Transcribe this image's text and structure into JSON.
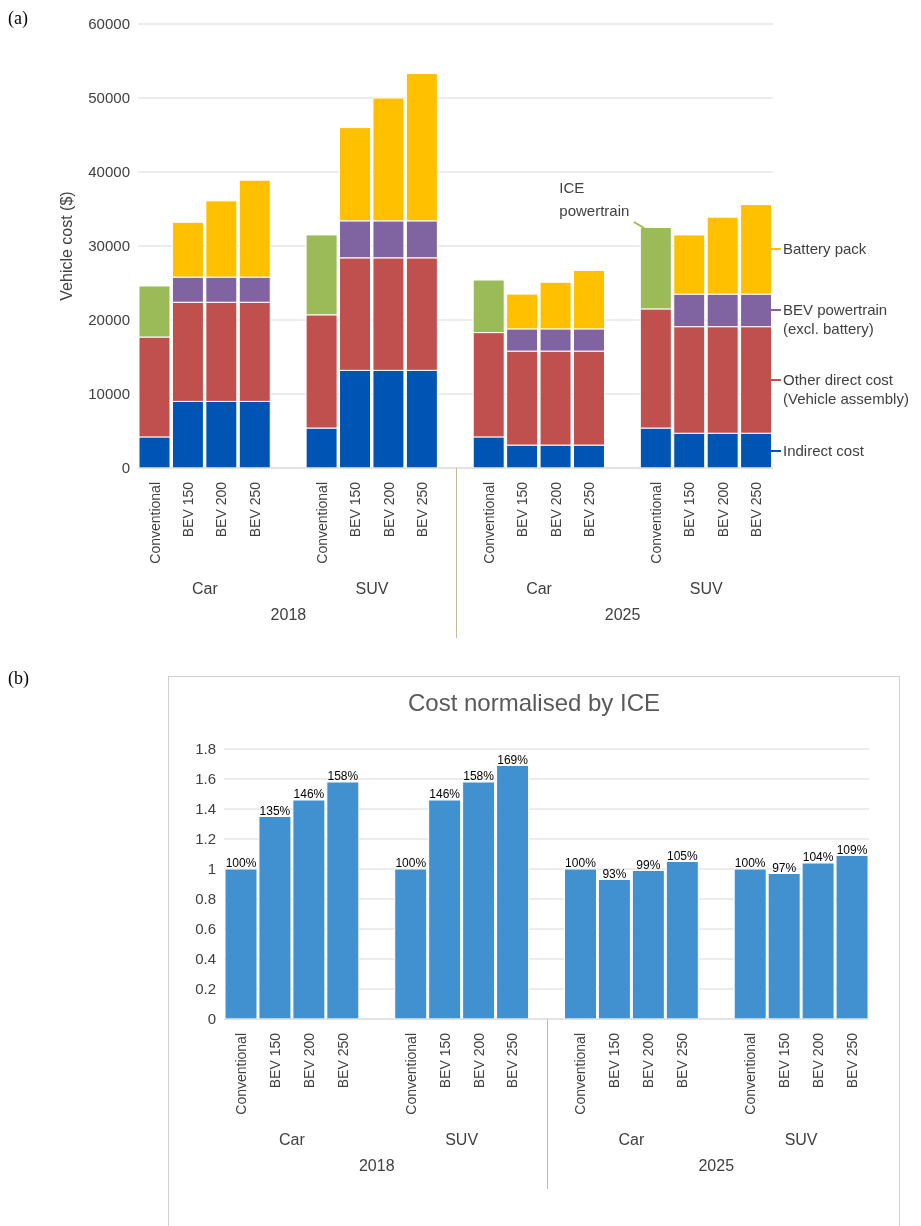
{
  "chart_data": [
    {
      "type": "bar",
      "stacked": true,
      "ylabel": "Vehicle cost ($)",
      "categories": [
        "Conventional",
        "BEV 150",
        "BEV 200",
        "BEV 250",
        null,
        "Conventional",
        "BEV 150",
        "BEV 200",
        "BEV 250",
        null,
        "Conventional",
        "BEV 150",
        "BEV 200",
        "BEV 250",
        null,
        "Conventional",
        "BEV 150",
        "BEV 200",
        "BEV 250"
      ],
      "series": [
        {
          "name": "Indirect cost",
          "color": "#0054b4",
          "values": [
            4200,
            9000,
            9000,
            9000,
            null,
            5400,
            13200,
            13200,
            13200,
            null,
            4200,
            3100,
            3100,
            3100,
            null,
            5400,
            4700,
            4700,
            4700
          ]
        },
        {
          "name": "Other direct cost (Vehicle assembly)",
          "color": "#c0504d",
          "values": [
            13500,
            13400,
            13400,
            13400,
            null,
            15300,
            15200,
            15200,
            15200,
            null,
            14100,
            12700,
            12700,
            12700,
            null,
            16100,
            14400,
            14400,
            14400
          ]
        },
        {
          "name": "BEV powertrain (excl. battery)",
          "color": "#8064a2",
          "values": [
            null,
            3400,
            3400,
            3400,
            null,
            null,
            5000,
            5000,
            5000,
            null,
            null,
            3000,
            3000,
            3000,
            null,
            null,
            4400,
            4400,
            4400
          ]
        },
        {
          "name": "ICE powertrain",
          "color": "#9bbb59",
          "values": [
            6900,
            null,
            null,
            null,
            null,
            10800,
            null,
            null,
            null,
            null,
            7100,
            null,
            null,
            null,
            null,
            11000,
            null,
            null,
            null
          ]
        },
        {
          "name": "Battery pack",
          "color": "#ffc000",
          "values": [
            null,
            7400,
            10300,
            13100,
            null,
            null,
            12600,
            16600,
            19900,
            null,
            null,
            4700,
            6300,
            7900,
            null,
            null,
            8000,
            10400,
            12100
          ]
        }
      ],
      "ylim": [
        0,
        60000
      ],
      "yticks": [
        0,
        10000,
        20000,
        30000,
        40000,
        50000,
        60000
      ],
      "grid": "y",
      "legend": "right",
      "annotations": [
        "(a)",
        "Car",
        "SUV",
        "Car",
        "SUV",
        "2018",
        "2025"
      ]
    },
    {
      "type": "bar",
      "title": "Cost normalised by ICE",
      "categories": [
        "Conventional",
        "BEV 150",
        "BEV 200",
        "BEV 250",
        null,
        "Conventional",
        "BEV 150",
        "BEV 200",
        "BEV 250",
        null,
        "Conventional",
        "BEV 150",
        "BEV 200",
        "BEV 250",
        null,
        "Conventional",
        "BEV 150",
        "BEV 200",
        "BEV 250"
      ],
      "values": [
        1,
        1.35,
        1.46,
        1.58,
        null,
        1,
        1.46,
        1.58,
        1.69,
        null,
        1,
        0.93,
        0.99,
        1.05,
        null,
        1,
        0.97,
        1.04,
        1.09
      ],
      "value_labels": [
        "100%",
        "135%",
        "146%",
        "158%",
        null,
        "100%",
        "146%",
        "158%",
        "169%",
        null,
        "100%",
        "93%",
        "99%",
        "105%",
        null,
        "100%",
        "97%",
        "104%",
        "109%"
      ],
      "color": "#4190cf",
      "ylim": [
        0,
        1.8
      ],
      "yticks": [
        0,
        0.2,
        0.4,
        0.6,
        0.8,
        1,
        1.2,
        1.4,
        1.6,
        1.8
      ],
      "grid": "y",
      "annotations": [
        "(b)",
        "Car",
        "SUV",
        "Car",
        "SUV",
        "2018",
        "2025"
      ]
    }
  ]
}
